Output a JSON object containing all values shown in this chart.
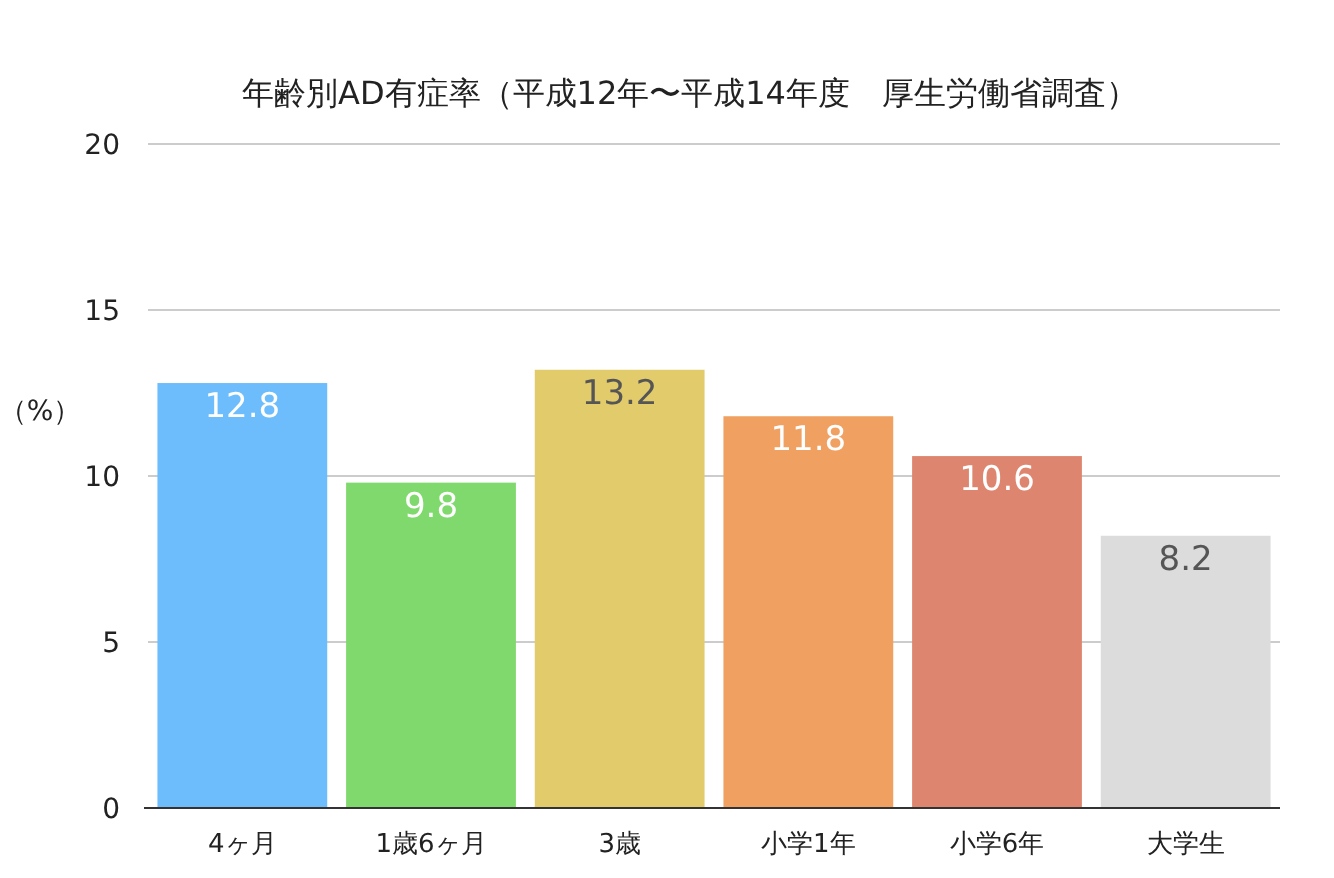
{
  "chart_data": {
    "type": "bar",
    "title": "年齢別AD有症率（平成12年〜平成14年度　厚生労働省調査）",
    "ylabel": "（%）",
    "categories": [
      "4ヶ月",
      "1歳6ヶ月",
      "3歳",
      "小学1年",
      "小学6年",
      "大学生"
    ],
    "values": [
      12.8,
      9.8,
      13.2,
      11.8,
      10.6,
      8.2
    ],
    "colors": [
      "#6dbdfc",
      "#80d96c",
      "#e2cb6a",
      "#f0a060",
      "#de8570",
      "#dcdcdc"
    ],
    "ylim": [
      0,
      20
    ],
    "yticks": [
      0,
      5,
      10,
      15,
      20
    ],
    "grid": "y",
    "data_labels": true
  }
}
